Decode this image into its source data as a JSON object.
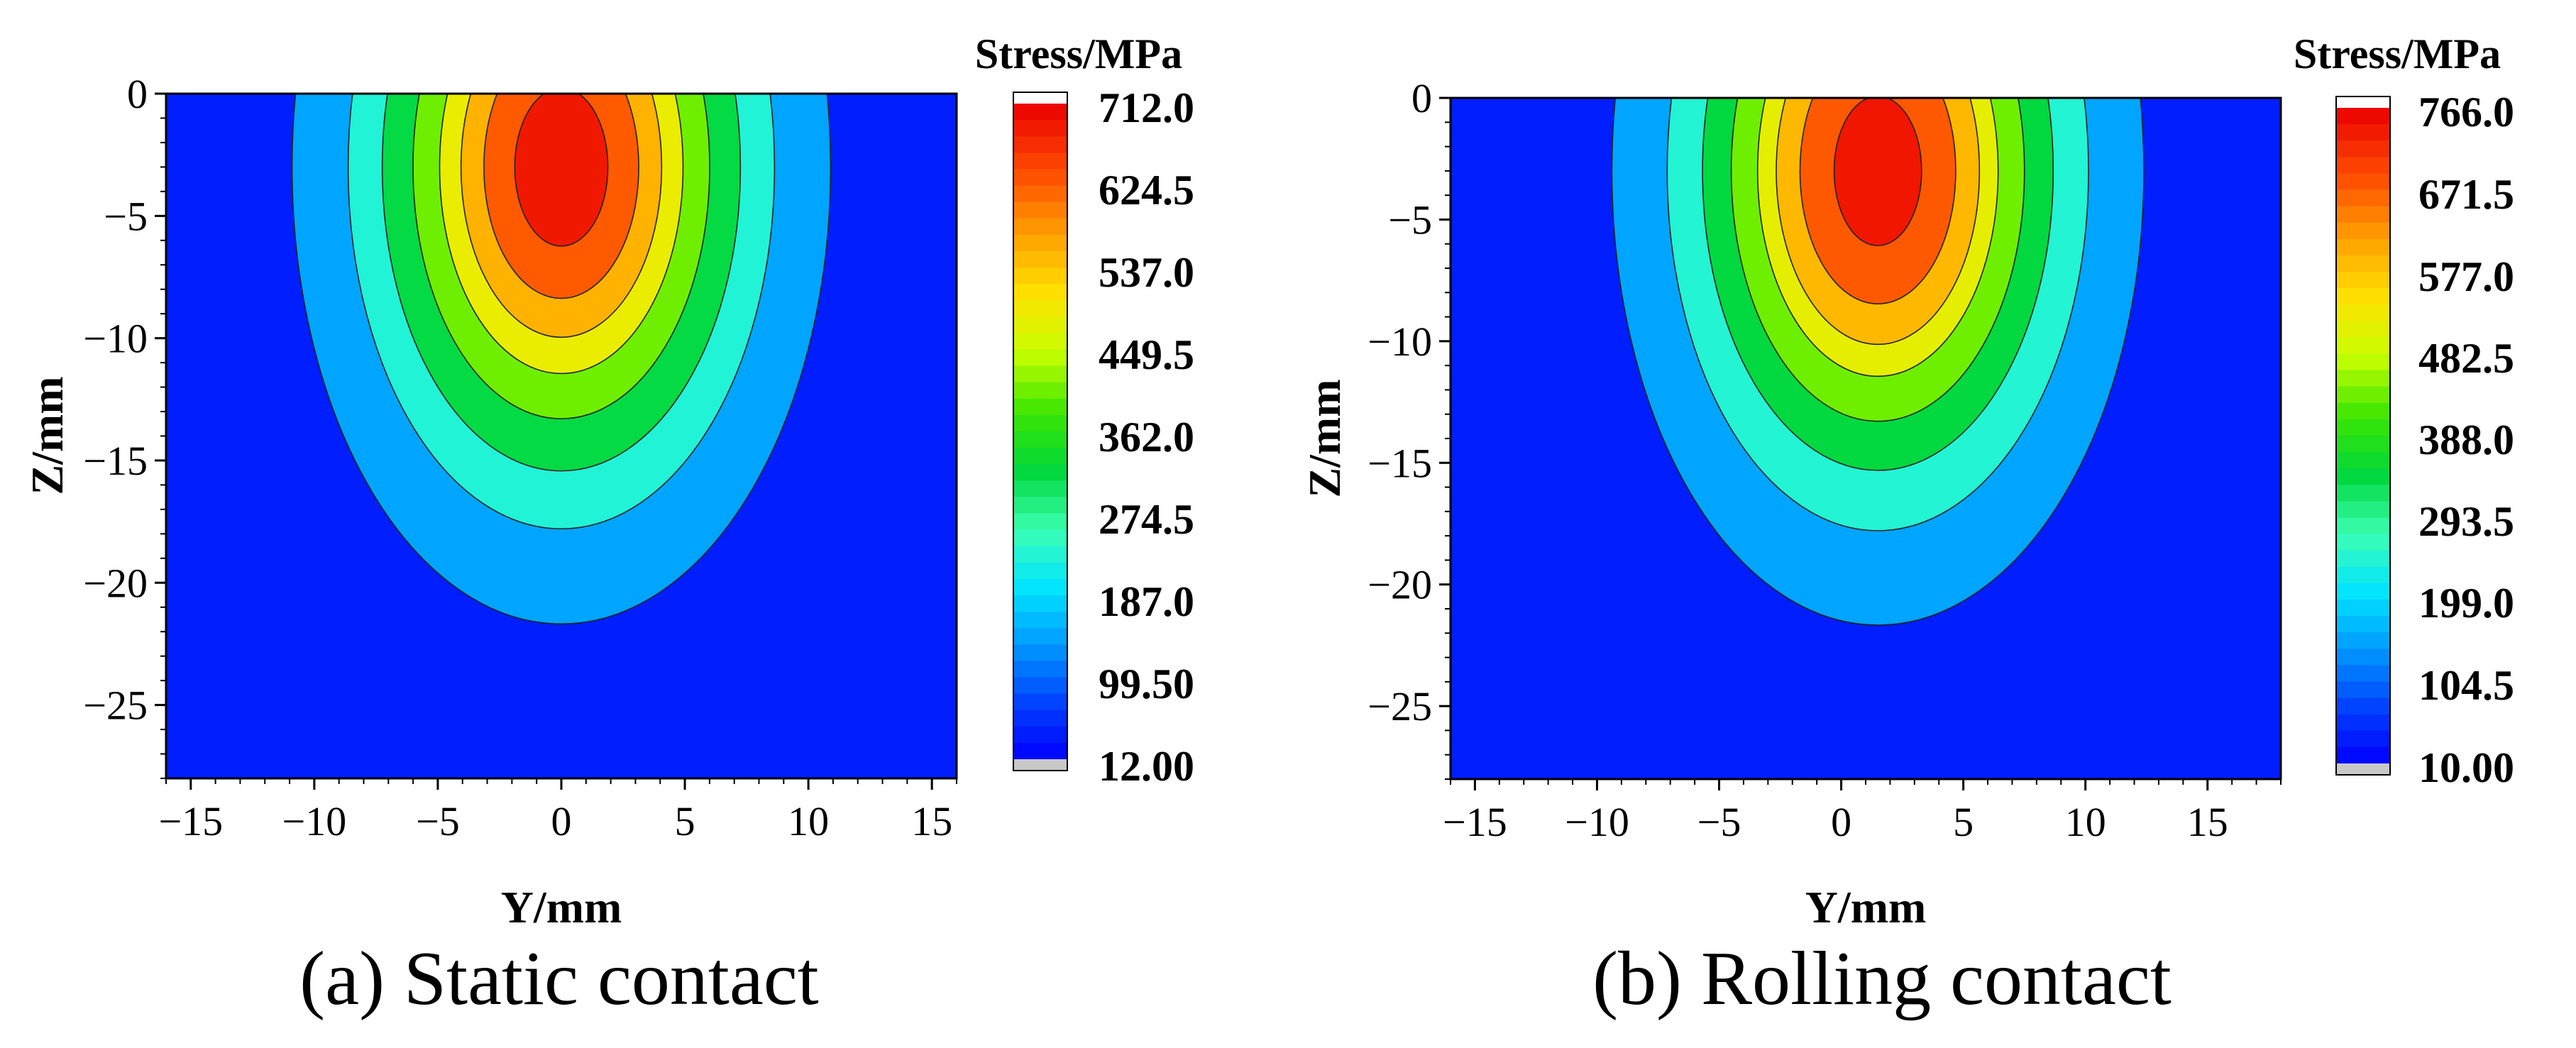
{
  "figure": {
    "panels": [
      {
        "caption": "(a) Static contact",
        "colorbar_title": "Stress/MPa",
        "colorbar_labels": [
          "712.0",
          "624.5",
          "537.0",
          "449.5",
          "362.0",
          "274.5",
          "187.0",
          "99.50",
          "12.00"
        ]
      },
      {
        "caption": "(b) Rolling contact",
        "colorbar_title": "Stress/MPa",
        "colorbar_labels": [
          "766.0",
          "671.5",
          "577.0",
          "482.5",
          "388.0",
          "293.5",
          "199.0",
          "104.5",
          "10.00"
        ]
      }
    ]
  },
  "chart_data": [
    {
      "type": "heatmap",
      "title": "(a) Static contact",
      "xlabel": "Y/mm",
      "ylabel": "Z/mm",
      "xlim": [
        -16,
        16
      ],
      "ylim": [
        -28,
        0
      ],
      "xticks": [
        -15,
        -10,
        -5,
        0,
        5,
        10,
        15
      ],
      "xtick_labels": [
        "−15",
        "−10",
        "−5",
        "0",
        "5",
        "10",
        "15"
      ],
      "yticks": [
        0,
        -5,
        -10,
        -15,
        -20,
        -25
      ],
      "ytick_labels": [
        "0",
        "−5",
        "−10",
        "−15",
        "−20",
        "−25"
      ],
      "colorbar": {
        "label": "Stress/MPa",
        "min": 12.0,
        "max": 712.0,
        "ticks": [
          712.0,
          624.5,
          537.0,
          449.5,
          362.0,
          274.5,
          187.0,
          99.5,
          12.0
        ]
      },
      "field": {
        "peak_value": 712.0,
        "peak_y": 0,
        "peak_z": -3,
        "background_value": 40,
        "decay_y": 7.0,
        "decay_z": 12.0
      },
      "contour_levels": [
        665,
        590,
        520,
        449.5,
        362,
        270,
        187,
        99.5
      ]
    },
    {
      "type": "heatmap",
      "title": "(b) Rolling contact",
      "xlabel": "Y/mm",
      "ylabel": "Z/mm",
      "xlim": [
        -16,
        18
      ],
      "ylim": [
        -28,
        0
      ],
      "xticks": [
        -15,
        -10,
        -5,
        0,
        5,
        10,
        15
      ],
      "xtick_labels": [
        "−15",
        "−10",
        "−5",
        "0",
        "5",
        "10",
        "15"
      ],
      "yticks": [
        0,
        -5,
        -10,
        -15,
        -20,
        -25
      ],
      "ytick_labels": [
        "0",
        "−5",
        "−10",
        "−15",
        "−20",
        "−25"
      ],
      "colorbar": {
        "label": "Stress/MPa",
        "min": 10.0,
        "max": 766.0,
        "ticks": [
          766.0,
          671.5,
          577.0,
          482.5,
          388.0,
          293.5,
          199.0,
          104.5,
          10.0
        ]
      },
      "field": {
        "peak_value": 766.0,
        "peak_y": 1.5,
        "peak_z": -3,
        "background_value": 40,
        "decay_y": 7.0,
        "decay_z": 12.0
      },
      "contour_levels": [
        720,
        630,
        550,
        482.5,
        388,
        293.5,
        199,
        104.5
      ]
    }
  ]
}
